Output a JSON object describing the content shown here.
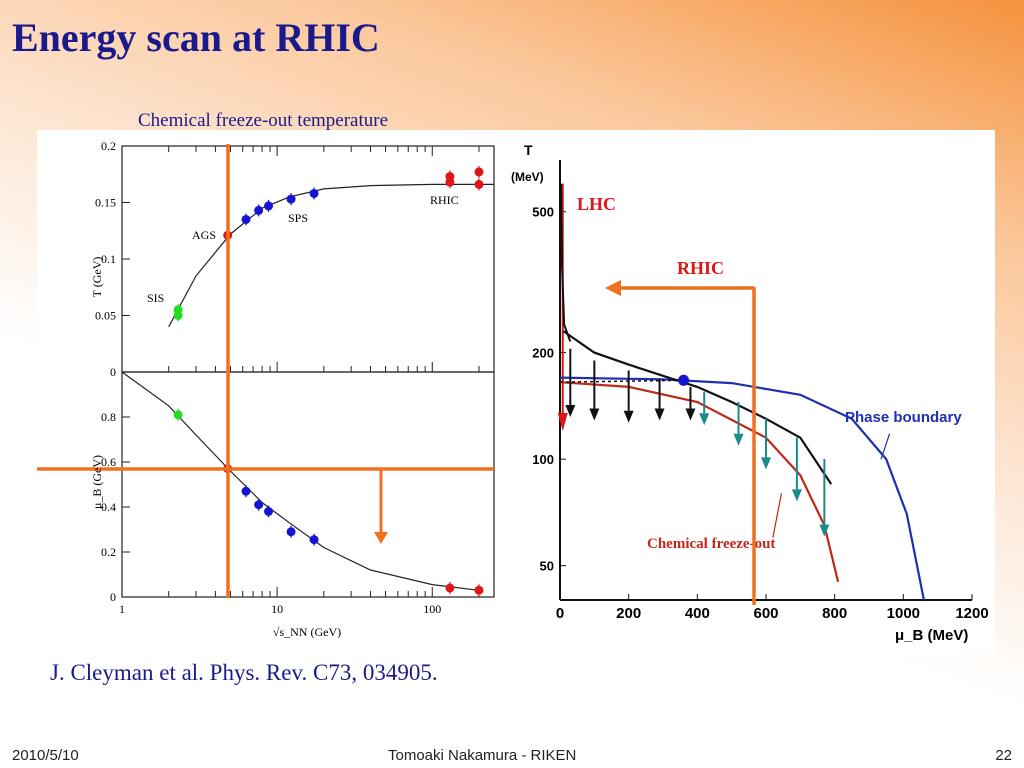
{
  "slide": {
    "title": "Energy scan at RHIC",
    "subtitle": "Chemical freeze-out temperature",
    "citation": "J. Cleyman et al. Phys. Rev. C73, 034905.",
    "footer": {
      "date": "2010/5/10",
      "center": "Tomoaki Nakamura - RIKEN",
      "page": "22"
    }
  },
  "colors": {
    "title": "#1a1a8c",
    "orange_marker": "#f07020",
    "blue": "#1515d0",
    "green": "#22dd22",
    "red": "#e01515",
    "teal": "#1a8a8a",
    "phase_boundary": "#1f2fb0",
    "freezeout": "#c0281a"
  },
  "chart_data": [
    {
      "type": "scatter",
      "xscale": "log",
      "xlabel": "√s_NN (GeV)",
      "ylabel": "T (GeV)",
      "xlim": [
        1,
        250
      ],
      "ylim": [
        0,
        0.2
      ],
      "yticks": [
        "0",
        "0.05",
        "0.1",
        "0.15",
        "0.2"
      ],
      "annotations": [
        "SIS",
        "AGS",
        "SPS",
        "RHIC"
      ],
      "series": [
        {
          "points": [
            [
              2.3,
              0.05
            ],
            [
              2.3,
              0.055
            ]
          ],
          "color": "#22dd22"
        },
        {
          "points": [
            [
              4.8,
              0.121
            ]
          ],
          "color": "#e01515"
        },
        {
          "points": [
            [
              6.3,
              0.135
            ],
            [
              7.6,
              0.143
            ],
            [
              8.8,
              0.147
            ],
            [
              12.3,
              0.153
            ],
            [
              17.3,
              0.158
            ]
          ],
          "color": "#1515d0"
        },
        {
          "points": [
            [
              130,
              0.173
            ],
            [
              130,
              0.168
            ],
            [
              200,
              0.177
            ],
            [
              200,
              0.166
            ]
          ],
          "color": "#e01515"
        }
      ],
      "fit_curve": [
        [
          2.0,
          0.04
        ],
        [
          3,
          0.085
        ],
        [
          5,
          0.122
        ],
        [
          8,
          0.145
        ],
        [
          12,
          0.155
        ],
        [
          20,
          0.162
        ],
        [
          40,
          0.165
        ],
        [
          100,
          0.166
        ],
        [
          250,
          0.166
        ]
      ]
    },
    {
      "type": "scatter",
      "xscale": "log",
      "xlabel": "√s_NN (GeV)",
      "ylabel": "μ_B (GeV)",
      "xlim": [
        1,
        250
      ],
      "ylim": [
        0,
        1.0
      ],
      "yticks": [
        "0",
        "0.2",
        "0.4",
        "0.6",
        "0.8"
      ],
      "xticks": [
        "1",
        "10",
        "100"
      ],
      "series": [
        {
          "points": [
            [
              2.3,
              0.81
            ]
          ],
          "color": "#22dd22"
        },
        {
          "points": [
            [
              4.8,
              0.57
            ]
          ],
          "color": "#e01515"
        },
        {
          "points": [
            [
              6.3,
              0.47
            ],
            [
              7.6,
              0.41
            ],
            [
              8.8,
              0.38
            ],
            [
              12.3,
              0.29
            ],
            [
              17.3,
              0.255
            ]
          ],
          "color": "#1515d0"
        },
        {
          "points": [
            [
              130,
              0.04
            ],
            [
              200,
              0.03
            ]
          ],
          "color": "#e01515"
        }
      ],
      "fit_curve": [
        [
          1,
          1.0
        ],
        [
          2,
          0.85
        ],
        [
          3,
          0.72
        ],
        [
          5,
          0.56
        ],
        [
          8,
          0.42
        ],
        [
          12,
          0.33
        ],
        [
          20,
          0.22
        ],
        [
          40,
          0.12
        ],
        [
          100,
          0.055
        ],
        [
          200,
          0.03
        ]
      ]
    },
    {
      "type": "line",
      "xlabel": "μ_B (MeV)",
      "ylabel": "T (MeV)",
      "yscale": "log",
      "xlim": [
        0,
        1200
      ],
      "ylim": [
        40,
        700
      ],
      "xticks": [
        "0",
        "200",
        "400",
        "600",
        "800",
        "1000",
        "1200"
      ],
      "yticks": [
        "50",
        "100",
        "200",
        "500"
      ],
      "annotations": [
        "LHC",
        "RHIC",
        "Phase boundary",
        "Chemical freeze-out"
      ],
      "series": [
        {
          "name": "Phase boundary",
          "points": [
            [
              0,
              170
            ],
            [
              300,
              168
            ],
            [
              500,
              164
            ],
            [
              700,
              152
            ],
            [
              850,
              130
            ],
            [
              950,
              100
            ],
            [
              1010,
              70
            ],
            [
              1060,
              40
            ]
          ],
          "color": "#1f2fb0"
        },
        {
          "name": "Chemical freeze-out",
          "points": [
            [
              0,
              165
            ],
            [
              200,
              160
            ],
            [
              400,
              145
            ],
            [
              600,
              115
            ],
            [
              700,
              90
            ],
            [
              770,
              65
            ],
            [
              810,
              45
            ]
          ],
          "color": "#c0281a"
        },
        {
          "points": [
            [
              10,
              230
            ],
            [
              100,
              200
            ],
            [
              200,
              185
            ],
            [
              300,
              172
            ],
            [
              400,
              160
            ],
            [
              500,
              145
            ],
            [
              600,
              130
            ],
            [
              700,
              115
            ],
            [
              790,
              85
            ]
          ],
          "color": "#111111"
        }
      ],
      "point": [
        360,
        167
      ]
    }
  ]
}
